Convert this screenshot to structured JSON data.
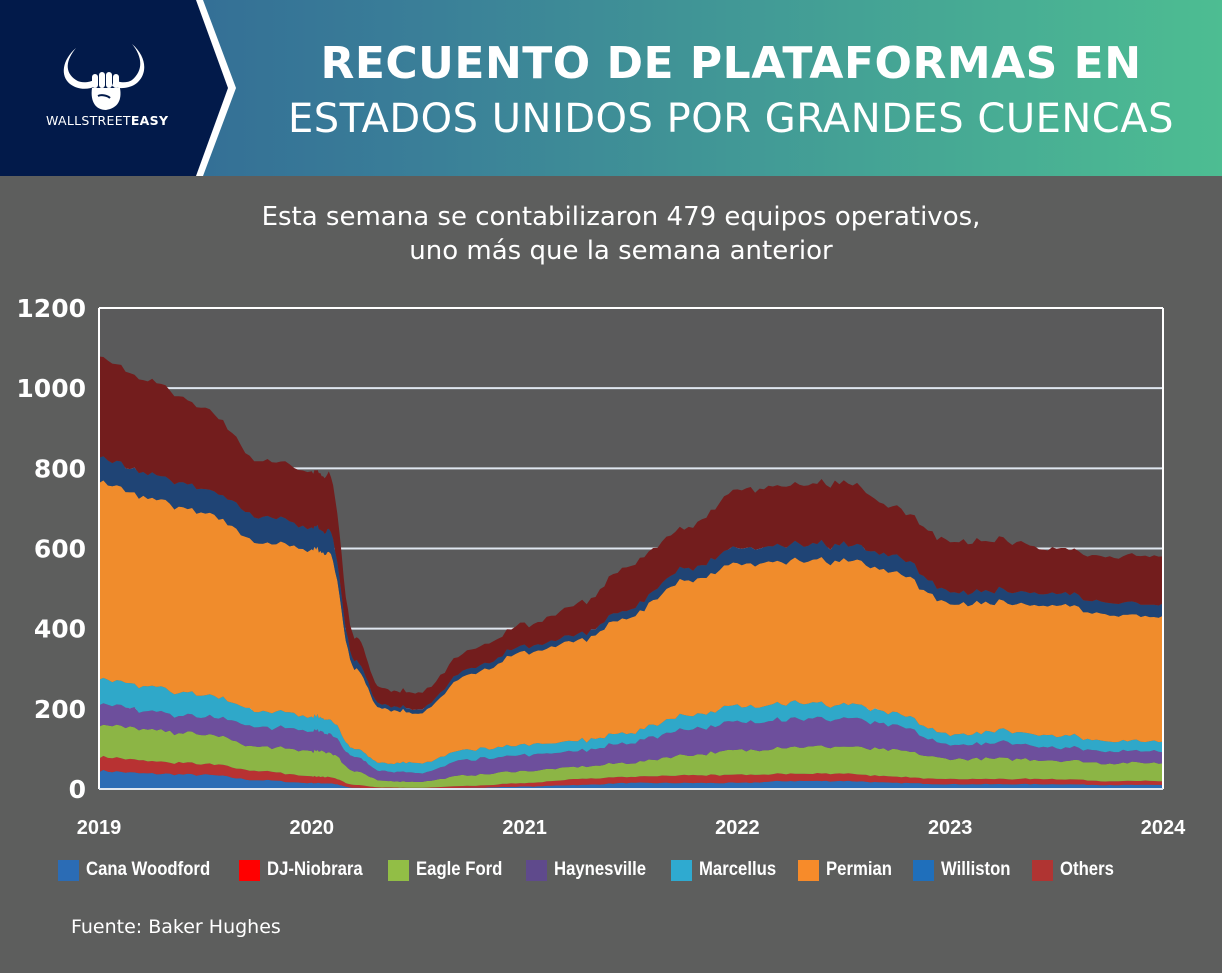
{
  "header": {
    "brand": {
      "light": "WALLSTREET",
      "bold": "EASY",
      "icon": "bull-fist-logo-icon"
    },
    "title_line1": "RECUENTO DE PLATAFORMAS EN",
    "title_line2": "ESTADOS UNIDOS POR GRANDES CUENCAS"
  },
  "subtitle": {
    "line1": "Esta semana se contabilizaron 479 equipos operativos,",
    "line2": "uno más que la semana anterior"
  },
  "source": "Fuente: Baker Hughes",
  "colors": {
    "navy": "#021a4a",
    "plot_bg": "#5a5a5b",
    "page_bg": "#5d5e5d",
    "grid": "#dfe6ef"
  },
  "chart_data": {
    "type": "area",
    "stacked": true,
    "title": "Recuento de plataformas en Estados Unidos por grandes cuencas",
    "xlabel": "",
    "ylabel": "",
    "xlim": [
      2019,
      2024
    ],
    "ylim": [
      0,
      1200
    ],
    "yticks": [
      0,
      200,
      400,
      600,
      800,
      1000,
      1200
    ],
    "ytick_labels": [
      "0",
      "200",
      "400",
      "600",
      "800",
      "1000",
      "1200"
    ],
    "xticks": [
      2019,
      2020,
      2021,
      2022,
      2023,
      2024
    ],
    "xtick_labels": [
      "2019",
      "2020",
      "2021",
      "2022",
      "2023",
      "2024"
    ],
    "grid": true,
    "legend_position": "bottom",
    "x": [
      2019.0,
      2019.25,
      2019.5,
      2019.75,
      2020.0,
      2020.08,
      2020.2,
      2020.33,
      2020.5,
      2020.75,
      2021.0,
      2021.25,
      2021.5,
      2021.75,
      2022.0,
      2022.25,
      2022.5,
      2022.75,
      2023.0,
      2023.25,
      2023.5,
      2023.75,
      2024.0
    ],
    "series": [
      {
        "name": "Cana Woodford",
        "color": "#2b6cb5",
        "values": [
          45,
          38,
          35,
          22,
          15,
          14,
          3,
          1,
          1,
          3,
          6,
          10,
          15,
          15,
          15,
          20,
          20,
          15,
          12,
          12,
          12,
          10,
          10
        ]
      },
      {
        "name": "DJ-Niobrara",
        "color": "#b83232",
        "legend_color": "#ff0000",
        "values": [
          35,
          30,
          27,
          23,
          17,
          16,
          7,
          3,
          2,
          5,
          9,
          15,
          15,
          20,
          20,
          18,
          18,
          15,
          13,
          13,
          13,
          10,
          10
        ]
      },
      {
        "name": "Eagle Ford",
        "color": "#8cb545",
        "legend_color": "#92be46",
        "values": [
          80,
          77,
          73,
          60,
          63,
          62,
          35,
          16,
          15,
          27,
          30,
          30,
          35,
          50,
          60,
          67,
          67,
          65,
          50,
          50,
          47,
          45,
          45
        ]
      },
      {
        "name": "Haynesville",
        "color": "#6d4f9c",
        "legend_color": "#5f4a8c",
        "values": [
          55,
          45,
          45,
          50,
          50,
          48,
          35,
          25,
          22,
          40,
          40,
          40,
          50,
          65,
          70,
          70,
          70,
          60,
          35,
          40,
          33,
          30,
          30
        ]
      },
      {
        "name": "Marcellus",
        "color": "#2fa8c9",
        "legend_color": "#2faad0",
        "values": [
          60,
          60,
          55,
          40,
          35,
          35,
          20,
          20,
          25,
          25,
          25,
          25,
          25,
          35,
          40,
          40,
          35,
          30,
          25,
          30,
          30,
          25,
          25
        ]
      },
      {
        "name": "Permian",
        "color": "#f08c2c",
        "legend_color": "#f78b2a",
        "values": [
          490,
          470,
          455,
          420,
          415,
          415,
          200,
          135,
          125,
          190,
          230,
          250,
          290,
          335,
          355,
          355,
          360,
          350,
          325,
          320,
          325,
          315,
          310
        ]
      },
      {
        "name": "Williston",
        "color": "#1f4475",
        "legend_color": "#1f6fbb",
        "values": [
          60,
          60,
          60,
          65,
          55,
          55,
          20,
          10,
          10,
          15,
          15,
          15,
          20,
          30,
          40,
          40,
          40,
          40,
          30,
          30,
          30,
          30,
          30
        ]
      },
      {
        "name": "Others",
        "color": "#731d1d",
        "legend_color": "#b03432",
        "values": [
          250,
          230,
          200,
          140,
          140,
          140,
          60,
          40,
          40,
          45,
          55,
          75,
          110,
          100,
          145,
          150,
          155,
          120,
          125,
          125,
          110,
          115,
          120
        ]
      }
    ]
  }
}
